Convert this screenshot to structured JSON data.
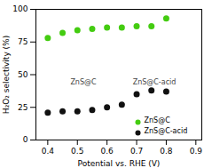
{
  "chart_data": {
    "type": "scatter",
    "x": [
      0.4,
      0.45,
      0.5,
      0.55,
      0.6,
      0.65,
      0.7,
      0.75,
      0.8
    ],
    "series": [
      {
        "name": "ZnS@C",
        "color": "#44cc11",
        "values": [
          78,
          82,
          84,
          85,
          86,
          86,
          87,
          87,
          93
        ]
      },
      {
        "name": "ZnS@C-acid",
        "color": "#111111",
        "values": [
          21,
          22,
          22,
          23,
          25,
          27,
          35,
          38,
          37
        ]
      }
    ],
    "xlabel": "Potential vs. RHE (V)",
    "ylabel": "H₂O₂ selectivity (%)",
    "xlim": [
      0.36,
      0.92
    ],
    "ylim": [
      0,
      100
    ],
    "xticks": [
      0.4,
      0.5,
      0.6,
      0.7,
      0.8,
      0.9
    ],
    "yticks": [
      0,
      25,
      50,
      75,
      100
    ],
    "legend": "lower right",
    "annotations": [
      "ZnS@C",
      "ZnS@C-acid"
    ]
  }
}
